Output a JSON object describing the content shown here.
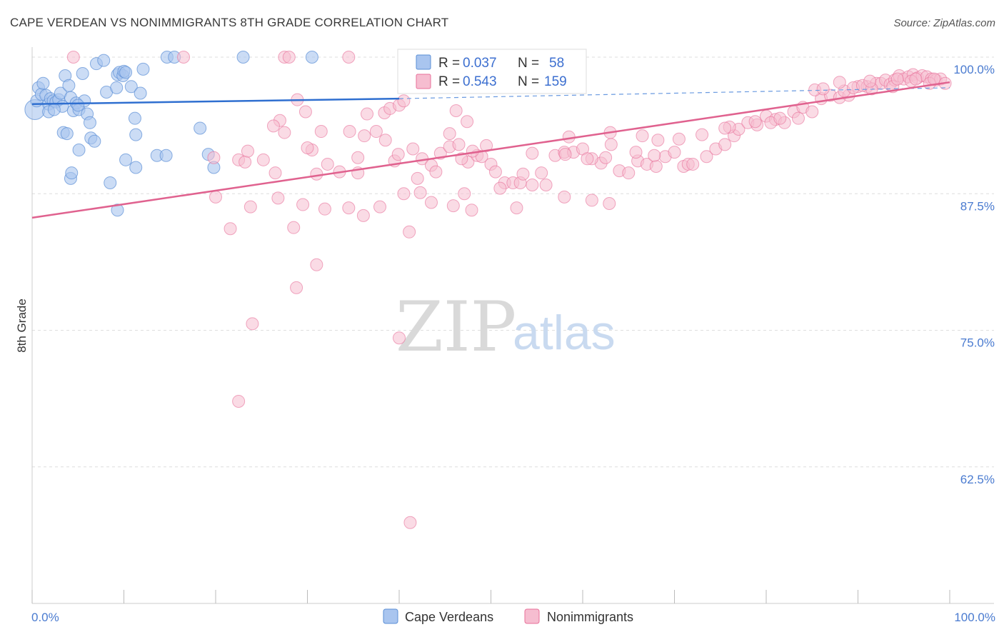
{
  "title": "CAPE VERDEAN VS NONIMMIGRANTS 8TH GRADE CORRELATION CHART",
  "source": "Source: ZipAtlas.com",
  "watermark": {
    "zip": "ZIP",
    "atlas": "atlas"
  },
  "colors": {
    "blue": "#5b8fd6",
    "blue_fill": "#a9c5ef",
    "pink": "#e8709a",
    "pink_fill": "#f6bdd0",
    "tick": "#4a7bd0",
    "grid": "#dedede"
  },
  "chart_data": {
    "type": "scatter",
    "title": "CAPE VERDEAN VS NONIMMIGRANTS 8TH GRADE CORRELATION CHART",
    "xlabel": "",
    "ylabel": "8th Grade",
    "xlim": [
      0,
      100
    ],
    "ylim": [
      50,
      100
    ],
    "x_tick_labels": [
      "0.0%",
      "100.0%"
    ],
    "y_ticks": [
      62.5,
      75.0,
      87.5,
      100.0
    ],
    "y_tick_labels": [
      "62.5%",
      "75.0%",
      "87.5%",
      "100.0%"
    ],
    "legend": [
      {
        "name": "Cape Verdeans",
        "r_label": "R =",
        "r": "0.037",
        "n_label": "N =",
        "n": "58"
      },
      {
        "name": "Nonimmigrants",
        "r_label": "R =",
        "r": "0.543",
        "n_label": "N =",
        "n": "159"
      }
    ],
    "series": [
      {
        "name": "Cape Verdeans",
        "trend": {
          "x": [
            0,
            40
          ],
          "y": [
            95.7,
            96.2
          ],
          "dashed_to": [
            100,
            97.2
          ]
        },
        "points": [
          [
            0.3,
            95.2
          ],
          [
            0.5,
            96.0
          ],
          [
            0.7,
            97.2
          ],
          [
            1.0,
            96.6
          ],
          [
            1.2,
            97.6
          ],
          [
            1.5,
            96.5
          ],
          [
            1.8,
            95.7
          ],
          [
            2.0,
            96.2
          ],
          [
            2.3,
            96.0
          ],
          [
            2.6,
            95.9
          ],
          [
            2.9,
            96.1
          ],
          [
            3.1,
            96.7
          ],
          [
            3.3,
            95.5
          ],
          [
            3.6,
            98.3
          ],
          [
            4.0,
            97.4
          ],
          [
            4.2,
            96.3
          ],
          [
            4.5,
            95.1
          ],
          [
            4.8,
            95.8
          ],
          [
            5.1,
            95.2
          ],
          [
            5.5,
            98.5
          ],
          [
            5.7,
            96.0
          ],
          [
            6.0,
            94.8
          ],
          [
            7.0,
            99.4
          ],
          [
            1.8,
            95.0
          ],
          [
            2.4,
            95.2
          ],
          [
            3.4,
            93.1
          ],
          [
            3.8,
            93.0
          ],
          [
            4.2,
            88.9
          ],
          [
            4.3,
            89.4
          ],
          [
            5.0,
            95.6
          ],
          [
            5.1,
            91.5
          ],
          [
            6.3,
            94.0
          ],
          [
            6.4,
            92.6
          ],
          [
            6.8,
            92.3
          ],
          [
            7.8,
            99.7
          ],
          [
            8.1,
            96.8
          ],
          [
            9.3,
            98.4
          ],
          [
            9.5,
            98.6
          ],
          [
            9.9,
            98.3
          ],
          [
            10.0,
            98.7
          ],
          [
            10.2,
            98.6
          ],
          [
            9.2,
            97.2
          ],
          [
            9.3,
            86.0
          ],
          [
            8.5,
            88.5
          ],
          [
            10.2,
            90.6
          ],
          [
            10.8,
            97.3
          ],
          [
            11.2,
            94.4
          ],
          [
            11.3,
            89.9
          ],
          [
            11.3,
            92.9
          ],
          [
            11.8,
            96.7
          ],
          [
            12.1,
            98.9
          ],
          [
            13.6,
            91.0
          ],
          [
            14.6,
            91.0
          ],
          [
            14.7,
            100.0
          ],
          [
            15.5,
            100.0
          ],
          [
            18.3,
            93.5
          ],
          [
            19.2,
            91.1
          ],
          [
            19.8,
            89.9
          ],
          [
            23.0,
            100.0
          ],
          [
            30.5,
            100.0
          ]
        ]
      },
      {
        "name": "Nonimmigrants",
        "trend": {
          "x": [
            0,
            100
          ],
          "y": [
            85.3,
            97.7
          ]
        },
        "points": [
          [
            4.5,
            100.0
          ],
          [
            16.5,
            100.0
          ],
          [
            27.5,
            100.0
          ],
          [
            28.0,
            100.0
          ],
          [
            34.5,
            100.0
          ],
          [
            28.9,
            96.1
          ],
          [
            29.8,
            95.0
          ],
          [
            27.0,
            94.2
          ],
          [
            36.5,
            94.8
          ],
          [
            38.4,
            94.9
          ],
          [
            39.0,
            95.3
          ],
          [
            40.0,
            95.6
          ],
          [
            40.5,
            96.0
          ],
          [
            46.2,
            95.1
          ],
          [
            47.4,
            94.1
          ],
          [
            27.5,
            93.1
          ],
          [
            30.5,
            91.5
          ],
          [
            32.2,
            90.2
          ],
          [
            35.5,
            90.8
          ],
          [
            36.2,
            92.8
          ],
          [
            37.5,
            93.2
          ],
          [
            38.5,
            92.4
          ],
          [
            42.5,
            90.7
          ],
          [
            44.5,
            91.2
          ],
          [
            45.5,
            91.8
          ],
          [
            43.5,
            90.1
          ],
          [
            46.5,
            92.0
          ],
          [
            47.5,
            90.4
          ],
          [
            48.5,
            91.0
          ],
          [
            49.0,
            90.9
          ],
          [
            49.5,
            91.9
          ],
          [
            50.0,
            90.2
          ],
          [
            19.8,
            90.8
          ],
          [
            22.5,
            90.6
          ],
          [
            23.2,
            90.4
          ],
          [
            25.2,
            90.6
          ],
          [
            26.5,
            89.4
          ],
          [
            31.0,
            89.3
          ],
          [
            33.5,
            89.5
          ],
          [
            35.5,
            89.4
          ],
          [
            39.5,
            90.5
          ],
          [
            42.0,
            88.9
          ],
          [
            50.5,
            89.5
          ],
          [
            51.5,
            88.5
          ],
          [
            52.4,
            88.5
          ],
          [
            53.2,
            88.5
          ],
          [
            53.5,
            89.3
          ],
          [
            56.0,
            88.3
          ],
          [
            62.0,
            90.3
          ],
          [
            55.5,
            89.4
          ],
          [
            57.0,
            91.0
          ],
          [
            58.0,
            91.3
          ],
          [
            59.0,
            91.3
          ],
          [
            60.0,
            91.6
          ],
          [
            61.0,
            90.7
          ],
          [
            62.5,
            90.8
          ],
          [
            64.0,
            89.6
          ],
          [
            65.0,
            89.4
          ],
          [
            66.0,
            90.5
          ],
          [
            67.0,
            90.2
          ],
          [
            68.0,
            90.0
          ],
          [
            69.0,
            90.9
          ],
          [
            70.0,
            91.3
          ],
          [
            71.0,
            90.0
          ],
          [
            71.5,
            90.2
          ],
          [
            72.0,
            90.2
          ],
          [
            73.5,
            90.9
          ],
          [
            74.5,
            91.6
          ],
          [
            75.5,
            92.0
          ],
          [
            76.5,
            92.8
          ],
          [
            77.0,
            93.4
          ],
          [
            78.0,
            94.0
          ],
          [
            79.0,
            93.8
          ],
          [
            80.0,
            94.6
          ],
          [
            81.0,
            94.3
          ],
          [
            82.0,
            94.0
          ],
          [
            83.0,
            95.0
          ],
          [
            84.0,
            95.4
          ],
          [
            85.0,
            95.0
          ],
          [
            86.0,
            96.2
          ],
          [
            87.0,
            96.5
          ],
          [
            88.0,
            96.3
          ],
          [
            89.0,
            96.5
          ],
          [
            90.0,
            97.3
          ],
          [
            91.0,
            97.3
          ],
          [
            92.0,
            97.6
          ],
          [
            92.5,
            97.6
          ],
          [
            93.0,
            97.9
          ],
          [
            93.5,
            97.5
          ],
          [
            94.0,
            97.9
          ],
          [
            94.5,
            98.3
          ],
          [
            95.0,
            98.0
          ],
          [
            95.5,
            98.2
          ],
          [
            96.0,
            98.4
          ],
          [
            96.5,
            98.1
          ],
          [
            97.0,
            98.3
          ],
          [
            97.5,
            98.2
          ],
          [
            98.0,
            98.0
          ],
          [
            98.5,
            97.9
          ],
          [
            99.0,
            98.0
          ],
          [
            99.5,
            97.6
          ],
          [
            85.3,
            97.0
          ],
          [
            86.2,
            97.1
          ],
          [
            88.5,
            96.9
          ],
          [
            89.5,
            97.2
          ],
          [
            90.5,
            97.4
          ],
          [
            91.5,
            97.1
          ],
          [
            93.8,
            97.3
          ],
          [
            95.8,
            97.8
          ],
          [
            97.8,
            97.6
          ],
          [
            88.0,
            97.7
          ],
          [
            91.3,
            97.8
          ],
          [
            94.3,
            98.0
          ],
          [
            96.3,
            98.0
          ],
          [
            98.3,
            98.0
          ],
          [
            80.5,
            94.0
          ],
          [
            83.5,
            94.4
          ],
          [
            76.0,
            93.6
          ],
          [
            73.0,
            92.9
          ],
          [
            70.5,
            92.5
          ],
          [
            66.5,
            92.8
          ],
          [
            63.0,
            93.1
          ],
          [
            58.5,
            92.7
          ],
          [
            54.5,
            91.2
          ],
          [
            48.0,
            91.4
          ],
          [
            46.8,
            90.7
          ],
          [
            44.0,
            89.5
          ],
          [
            41.5,
            91.6
          ],
          [
            34.6,
            93.2
          ],
          [
            31.5,
            93.2
          ],
          [
            30.0,
            91.7
          ],
          [
            26.3,
            93.7
          ],
          [
            23.5,
            91.4
          ],
          [
            20.0,
            87.2
          ],
          [
            23.8,
            86.3
          ],
          [
            26.8,
            87.1
          ],
          [
            29.5,
            86.5
          ],
          [
            31.9,
            86.1
          ],
          [
            34.5,
            86.2
          ],
          [
            37.9,
            86.3
          ],
          [
            40.5,
            87.5
          ],
          [
            43.5,
            86.7
          ],
          [
            45.9,
            86.4
          ],
          [
            47.9,
            86.0
          ],
          [
            51.0,
            88.0
          ],
          [
            52.8,
            86.2
          ],
          [
            54.5,
            88.3
          ],
          [
            58.0,
            87.2
          ],
          [
            61.0,
            86.9
          ],
          [
            62.9,
            86.6
          ],
          [
            63.1,
            92.0
          ],
          [
            65.8,
            91.3
          ],
          [
            67.8,
            91.0
          ],
          [
            68.2,
            92.4
          ],
          [
            75.5,
            93.5
          ],
          [
            78.8,
            94.1
          ],
          [
            81.5,
            94.4
          ],
          [
            36.1,
            85.5
          ],
          [
            41.1,
            84.0
          ],
          [
            21.6,
            84.3
          ],
          [
            28.5,
            84.4
          ],
          [
            39.9,
            91.1
          ],
          [
            45.5,
            93.0
          ],
          [
            58.1,
            91.1
          ],
          [
            60.5,
            90.7
          ],
          [
            42.3,
            87.6
          ],
          [
            47.1,
            87.5
          ],
          [
            28.8,
            78.9
          ],
          [
            31.0,
            81.0
          ],
          [
            22.5,
            68.5
          ],
          [
            40.0,
            74.3
          ],
          [
            24.0,
            75.6
          ],
          [
            41.2,
            57.4
          ]
        ]
      }
    ]
  }
}
